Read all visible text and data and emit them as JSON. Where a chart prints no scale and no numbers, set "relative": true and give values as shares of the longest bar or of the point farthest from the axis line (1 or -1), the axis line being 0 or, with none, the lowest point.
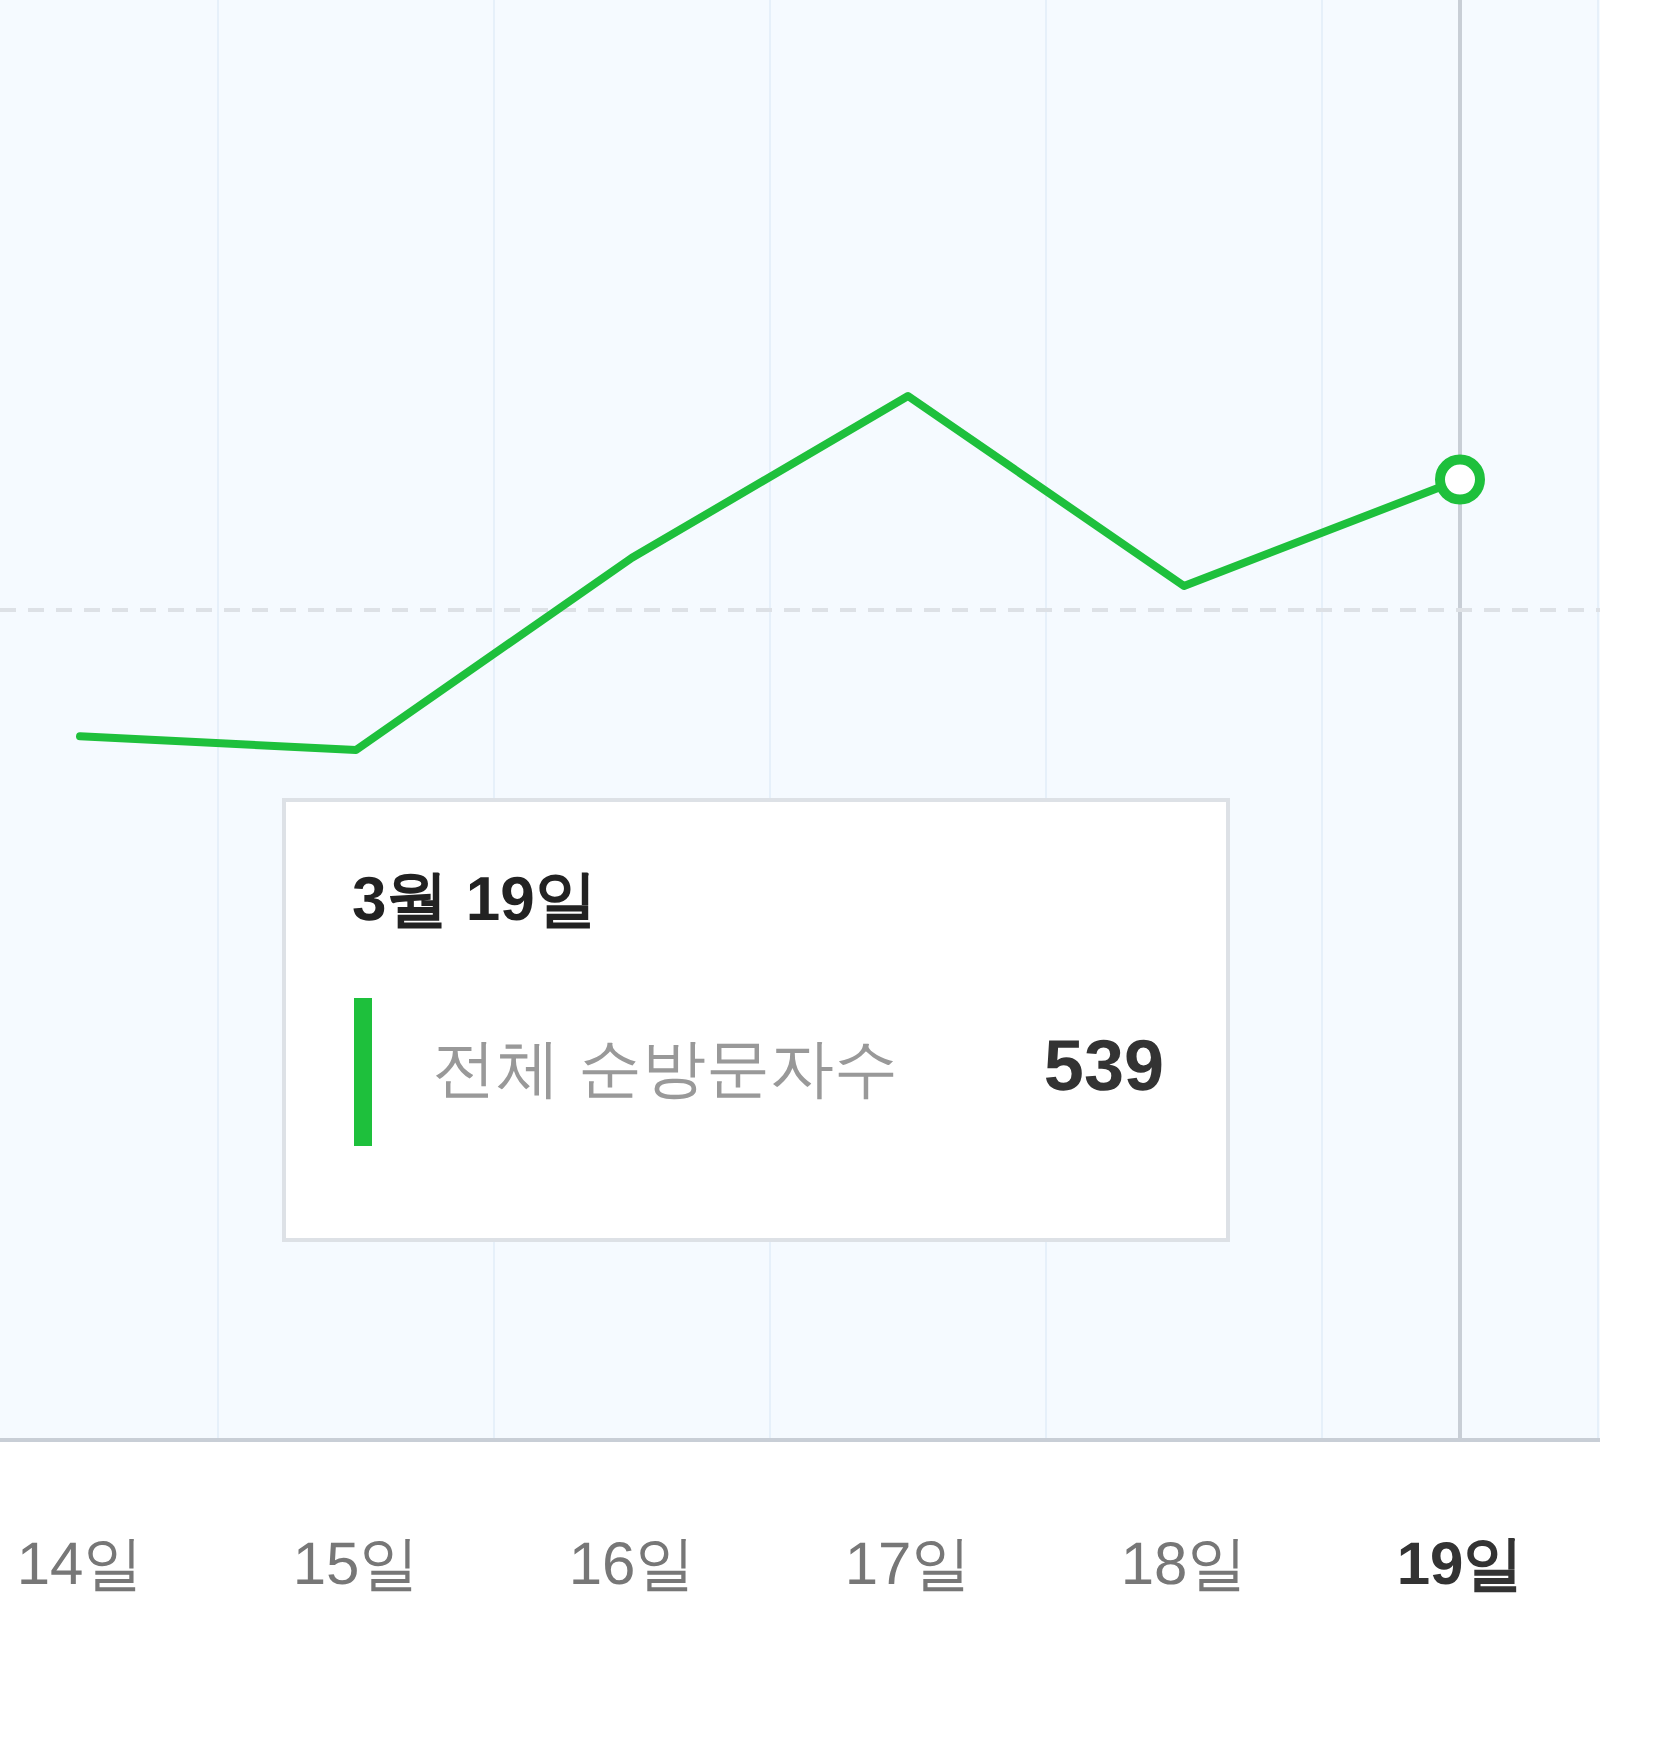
{
  "chart_data": {
    "type": "line",
    "relative": true,
    "categories": [
      "14일",
      "15일",
      "16일",
      "17일",
      "18일",
      "19일"
    ],
    "series": [
      {
        "name": "전체 순방문자수",
        "color": "#1ec03c",
        "values": [
          0.674,
          0.661,
          0.845,
          1,
          0.818,
          0.92
        ]
      }
    ],
    "grid": "x",
    "ref_lines": [
      {
        "axis": "x",
        "value": "19일",
        "color": "#c8ced6",
        "line_style": "solid"
      },
      {
        "axis": "y",
        "value": 0.795,
        "color": "#dde1e6",
        "line_style": "dashed"
      }
    ],
    "annotations": [
      "3월 19일",
      "539"
    ]
  }
}
